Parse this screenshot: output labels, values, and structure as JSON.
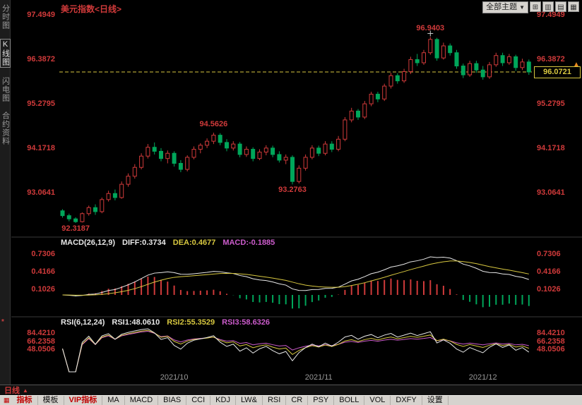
{
  "header": {
    "title": "美元指数<日线>",
    "theme_button": {
      "label": "全部主题",
      "arrow": "▼"
    },
    "window_buttons": [
      "⊞",
      "▥",
      "▤",
      "▦"
    ]
  },
  "sidebar": {
    "items": [
      {
        "label": "分时图"
      },
      {
        "label": "K线图"
      },
      {
        "label": "闪电图"
      },
      {
        "label": "合约资料"
      }
    ],
    "pane_icon": "*"
  },
  "main_chart": {
    "y_axis_labels": [
      "97.4949",
      "96.3872",
      "95.2795",
      "94.1718",
      "93.0641"
    ],
    "price_tag": "96.0721",
    "price_tag_value": 96.0721,
    "alert_arrow": "▲",
    "annotations": [
      {
        "text": "92.3187",
        "index": 2,
        "pos": "below",
        "cross": false
      },
      {
        "text": "94.5626",
        "index": 23,
        "pos": "above",
        "cross": false
      },
      {
        "text": "93.2763",
        "index": 35,
        "pos": "below",
        "cross": false
      },
      {
        "text": "96.9403",
        "index": 56,
        "pos": "above",
        "cross": true
      }
    ]
  },
  "macd": {
    "name": "MACD(26,12,9)",
    "diff": "DIFF:0.3734",
    "dea": "DEA:0.4677",
    "macd": "MACD:-0.1885",
    "y_axis_labels": [
      "0.7306",
      "0.4166",
      "0.1026"
    ]
  },
  "rsi": {
    "name": "RSI(6,12,24)",
    "rsi1": "RSI1:48.0610",
    "rsi2": "RSI2:55.3529",
    "rsi3": "RSI3:58.6326",
    "y_axis_labels": [
      "84.4210",
      "66.2358",
      "48.0506"
    ]
  },
  "status_bar": {
    "period": "日线",
    "arrow": "▲"
  },
  "toolbar": {
    "grid_icon": "▦",
    "items": [
      {
        "label": "指标",
        "accent": true
      },
      {
        "label": "模板",
        "accent": false
      },
      {
        "label": "VIP指标",
        "accent": true
      },
      {
        "label": "MA",
        "accent": false
      },
      {
        "label": "MACD",
        "accent": false
      },
      {
        "label": "BIAS",
        "accent": false
      },
      {
        "label": "CCI",
        "accent": false
      },
      {
        "label": "KDJ",
        "accent": false
      },
      {
        "label": "LW&",
        "accent": false
      },
      {
        "label": "RSI",
        "accent": false
      },
      {
        "label": "CR",
        "accent": false
      },
      {
        "label": "PSY",
        "accent": false
      },
      {
        "label": "BOLL",
        "accent": false
      },
      {
        "label": "VOL",
        "accent": false
      },
      {
        "label": "DXFY",
        "accent": false
      },
      {
        "label": "设置",
        "accent": false
      }
    ]
  },
  "colors": {
    "up": "#d03a3a",
    "down": "#00a65a",
    "axis_text": "#d03a3a",
    "dashed_line": "#d8c840",
    "diff_line": "#e8e8e8",
    "dea_line": "#d8c840",
    "rsi1_line": "#e8e8e8",
    "rsi2_line": "#d8c840",
    "rsi3_line": "#cc5ccc"
  },
  "chart_data": {
    "type": "candlestick",
    "symbol": "美元指数",
    "period": "日线",
    "y_range": [
      92.02,
      97.72
    ],
    "x_labels": [
      {
        "text": "2021/10",
        "index": 17
      },
      {
        "text": "2021/11",
        "index": 39
      },
      {
        "text": "2021/12",
        "index": 64
      }
    ],
    "high": 96.9403,
    "low": 92.3187,
    "last": 96.0721,
    "ohlc": [
      [
        92.62,
        92.66,
        92.45,
        92.5
      ],
      [
        92.5,
        92.55,
        92.36,
        92.42
      ],
      [
        92.42,
        92.46,
        92.3187,
        92.35
      ],
      [
        92.35,
        92.58,
        92.33,
        92.55
      ],
      [
        92.55,
        92.75,
        92.5,
        92.7
      ],
      [
        92.7,
        92.78,
        92.52,
        92.6
      ],
      [
        92.6,
        92.95,
        92.56,
        92.9
      ],
      [
        92.9,
        93.12,
        92.85,
        93.05
      ],
      [
        93.05,
        93.15,
        92.88,
        92.95
      ],
      [
        92.95,
        93.35,
        92.92,
        93.28
      ],
      [
        93.28,
        93.55,
        93.22,
        93.48
      ],
      [
        93.48,
        93.78,
        93.42,
        93.7
      ],
      [
        93.7,
        94.05,
        93.65,
        93.98
      ],
      [
        93.98,
        94.28,
        93.92,
        94.2
      ],
      [
        94.2,
        94.32,
        94.02,
        94.1
      ],
      [
        94.1,
        94.18,
        93.85,
        93.92
      ],
      [
        93.92,
        94.12,
        93.8,
        94.05
      ],
      [
        94.05,
        94.1,
        93.72,
        93.8
      ],
      [
        93.8,
        93.88,
        93.58,
        93.65
      ],
      [
        93.65,
        94.0,
        93.6,
        93.95
      ],
      [
        93.95,
        94.22,
        93.9,
        94.15
      ],
      [
        94.15,
        94.3,
        94.05,
        94.25
      ],
      [
        94.25,
        94.42,
        94.18,
        94.35
      ],
      [
        94.35,
        94.5626,
        94.28,
        94.5
      ],
      [
        94.5,
        94.55,
        94.25,
        94.32
      ],
      [
        94.32,
        94.4,
        94.1,
        94.18
      ],
      [
        94.18,
        94.35,
        94.12,
        94.28
      ],
      [
        94.28,
        94.33,
        93.95,
        94.02
      ],
      [
        94.02,
        94.22,
        93.96,
        94.15
      ],
      [
        94.15,
        94.2,
        93.85,
        93.92
      ],
      [
        93.92,
        94.15,
        93.88,
        94.08
      ],
      [
        94.08,
        94.25,
        94.0,
        94.18
      ],
      [
        94.18,
        94.24,
        93.95,
        94.02
      ],
      [
        94.02,
        94.1,
        93.82,
        93.88
      ],
      [
        93.88,
        94.02,
        93.78,
        93.95
      ],
      [
        93.95,
        94.0,
        93.2763,
        93.35
      ],
      [
        93.35,
        93.75,
        93.3,
        93.68
      ],
      [
        93.68,
        94.02,
        93.62,
        93.95
      ],
      [
        93.95,
        94.25,
        93.9,
        94.18
      ],
      [
        94.18,
        94.24,
        93.98,
        94.05
      ],
      [
        94.05,
        94.35,
        94.0,
        94.28
      ],
      [
        94.28,
        94.35,
        94.08,
        94.15
      ],
      [
        94.15,
        94.48,
        94.1,
        94.4
      ],
      [
        94.4,
        94.95,
        94.35,
        94.88
      ],
      [
        94.88,
        95.18,
        94.82,
        95.1
      ],
      [
        95.1,
        95.15,
        94.88,
        94.95
      ],
      [
        94.95,
        95.35,
        94.9,
        95.28
      ],
      [
        95.28,
        95.58,
        95.22,
        95.52
      ],
      [
        95.52,
        95.58,
        95.32,
        95.4
      ],
      [
        95.4,
        95.78,
        95.35,
        95.72
      ],
      [
        95.72,
        96.05,
        95.66,
        95.98
      ],
      [
        95.98,
        96.04,
        95.78,
        95.85
      ],
      [
        95.85,
        96.15,
        95.8,
        96.08
      ],
      [
        96.08,
        96.45,
        96.02,
        96.38
      ],
      [
        96.38,
        96.52,
        96.22,
        96.3
      ],
      [
        96.3,
        96.62,
        96.25,
        96.55
      ],
      [
        96.55,
        96.9403,
        96.5,
        96.88
      ],
      [
        96.88,
        96.92,
        96.35,
        96.42
      ],
      [
        96.42,
        96.8,
        96.38,
        96.72
      ],
      [
        96.72,
        96.78,
        96.48,
        96.55
      ],
      [
        96.55,
        96.62,
        96.15,
        96.22
      ],
      [
        96.22,
        96.28,
        95.92,
        96.0
      ],
      [
        96.0,
        96.35,
        95.95,
        96.28
      ],
      [
        96.28,
        96.35,
        96.05,
        96.12
      ],
      [
        96.12,
        96.22,
        95.88,
        95.95
      ],
      [
        95.95,
        96.32,
        95.9,
        96.25
      ],
      [
        96.25,
        96.55,
        96.2,
        96.48
      ],
      [
        96.48,
        96.55,
        96.22,
        96.3
      ],
      [
        96.3,
        96.52,
        96.25,
        96.45
      ],
      [
        96.45,
        96.5,
        96.1,
        96.18
      ],
      [
        96.18,
        96.4,
        96.12,
        96.32
      ],
      [
        96.32,
        96.38,
        96.0,
        96.0721
      ]
    ]
  }
}
